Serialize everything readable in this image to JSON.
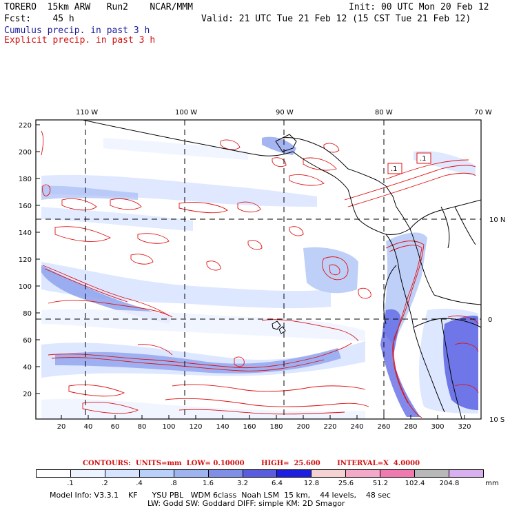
{
  "header": {
    "title_left": "TORERO  15km ARW   Run2    NCAR/MMM",
    "init": "Init: 00 UTC Mon 20 Feb 12",
    "fcst": "Fcst:    45 h",
    "valid": "Valid: 21 UTC Tue 21 Feb 12 (15 CST Tue 21 Feb 12)",
    "legend_cumulus": "Cumulus precip. in past 3 h",
    "legend_explicit": "Explicit precip. in past 3 h"
  },
  "axes": {
    "top_lon": [
      "110 W",
      "100 W",
      "90 W",
      "80 W",
      "70 W"
    ],
    "right_lat": [
      "10 N",
      "0",
      "10 S"
    ],
    "left_ticks": [
      "220",
      "200",
      "180",
      "160",
      "140",
      "120",
      "100",
      "80",
      "60",
      "40",
      "20"
    ],
    "bottom_ticks": [
      "20",
      "40",
      "60",
      "80",
      "100",
      "120",
      "140",
      "160",
      "180",
      "200",
      "220",
      "240",
      "260",
      "280",
      "300",
      "320"
    ],
    "grid_x_values": [
      40,
      113,
      182,
      260
    ],
    "grid_y_values": [
      150,
      76
    ]
  },
  "map_labels": {
    "box1": ".1",
    "box2": ".1"
  },
  "contours_line": "CONTOURS:  UNITS=mm  LOW= 0.10000       HIGH=  25.600       INTERVAL=X  4.0000",
  "colorbar": {
    "colors": [
      "#ffffff",
      "#eef4ff",
      "#d6e4ff",
      "#b8d0fa",
      "#9db4f0",
      "#7f8ee6",
      "#5a5ce0",
      "#1e1ee0",
      "#f6d3d3",
      "#f4a9c8",
      "#f07ab0",
      "#b8b8b8",
      "#d8b0f0"
    ],
    "labels": [
      ".1",
      ".2",
      ".4",
      ".8",
      "1.6",
      "3.2",
      "6.4",
      "12.8",
      "25.6",
      "51.2",
      "102.4",
      "204.8"
    ],
    "unit": "mm"
  },
  "model_info": {
    "line1": "Model Info: V3.3.1    KF      YSU PBL   WDM 6class  Noah LSM  15 km,    44 levels,    48 sec",
    "line2": "LW: Godd SW: Goddard DIFF: simple KM: 2D Smagor"
  }
}
